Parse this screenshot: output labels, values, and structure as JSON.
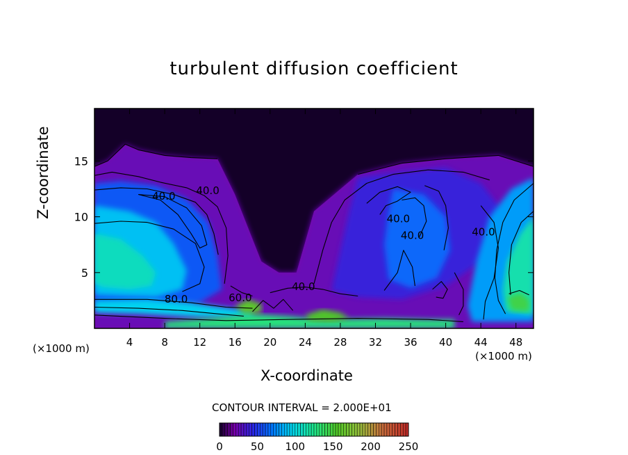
{
  "chart_data": {
    "type": "heatmap",
    "title": "turbulent diffusion coefficient",
    "xlabel": "X-coordinate",
    "ylabel": "Z-coordinate",
    "x_unit_left": "(×1000 m)",
    "x_unit_right": "(×1000 m)",
    "xlim": [
      0,
      50
    ],
    "ylim": [
      0,
      19.7
    ],
    "x_ticks": [
      4,
      8,
      12,
      16,
      20,
      24,
      28,
      32,
      36,
      40,
      44,
      48
    ],
    "y_ticks": [
      5,
      10,
      15
    ],
    "contour_interval_text": "CONTOUR INTERVAL = 2.000E+01",
    "colorbar": {
      "min": 0,
      "max": 250,
      "ticks": [
        0,
        50,
        100,
        150,
        200,
        250
      ]
    },
    "contour_labels": [
      {
        "text": "40.0",
        "x": 7.9,
        "y": 11.8
      },
      {
        "text": "40.0",
        "x": 12.9,
        "y": 12.3
      },
      {
        "text": "80.0",
        "x": 9.3,
        "y": 2.6
      },
      {
        "text": "60.0",
        "x": 16.6,
        "y": 2.7
      },
      {
        "text": "40.0",
        "x": 23.8,
        "y": 3.7
      },
      {
        "text": "40.0",
        "x": 34.6,
        "y": 9.8
      },
      {
        "text": "40.0",
        "x": 36.2,
        "y": 8.3
      },
      {
        "text": "40.0",
        "x": 44.3,
        "y": 8.6
      }
    ],
    "regions": [
      {
        "name": "upper-atmosphere",
        "value": 0,
        "poly": [
          [
            0,
            19.7
          ],
          [
            50,
            19.7
          ],
          [
            50,
            14.5
          ],
          [
            46,
            15.5
          ],
          [
            40,
            15.2
          ],
          [
            35,
            14.8
          ],
          [
            30,
            13.8
          ],
          [
            25,
            10.5
          ],
          [
            23,
            5
          ],
          [
            21,
            5
          ],
          [
            19,
            6
          ],
          [
            16,
            12
          ],
          [
            14,
            15.2
          ],
          [
            11,
            15.3
          ],
          [
            8,
            15.5
          ],
          [
            5,
            16
          ],
          [
            3.5,
            16.5
          ],
          [
            1.5,
            15
          ],
          [
            0,
            14.5
          ]
        ]
      },
      {
        "name": "left-cell",
        "value": 25,
        "poly": [
          [
            0,
            14.5
          ],
          [
            1.5,
            15
          ],
          [
            3.5,
            16.5
          ],
          [
            5,
            16
          ],
          [
            8,
            15.5
          ],
          [
            11,
            15.3
          ],
          [
            14,
            15.2
          ],
          [
            16,
            12
          ],
          [
            19,
            6
          ],
          [
            21,
            5
          ],
          [
            23,
            5
          ],
          [
            25,
            10.5
          ],
          [
            30,
            13.8
          ],
          [
            35,
            14.8
          ],
          [
            40,
            15.2
          ],
          [
            46,
            15.5
          ],
          [
            50,
            14.5
          ],
          [
            50,
            0
          ],
          [
            0,
            0
          ]
        ]
      },
      {
        "name": "left-cell-core",
        "value": 60,
        "poly": [
          [
            0,
            13
          ],
          [
            3,
            13.2
          ],
          [
            7,
            12.8
          ],
          [
            10.5,
            11.6
          ],
          [
            13,
            9.5
          ],
          [
            14,
            6.5
          ],
          [
            14.5,
            3.5
          ],
          [
            12,
            2.3
          ],
          [
            8,
            2
          ],
          [
            4,
            2
          ],
          [
            0,
            2
          ]
        ]
      },
      {
        "name": "left-cell-inner",
        "value": 90,
        "poly": [
          [
            0,
            11
          ],
          [
            4,
            10.5
          ],
          [
            7,
            9.5
          ],
          [
            9,
            7.6
          ],
          [
            10.5,
            5.2
          ],
          [
            10,
            3.5
          ],
          [
            7,
            2.8
          ],
          [
            3,
            2.9
          ],
          [
            0,
            3
          ]
        ]
      },
      {
        "name": "left-cell-bright",
        "value": 110,
        "poly": [
          [
            0,
            8.5
          ],
          [
            3,
            8
          ],
          [
            5.5,
            6.5
          ],
          [
            7,
            5
          ],
          [
            6.5,
            3.8
          ],
          [
            4,
            3.5
          ],
          [
            1,
            3.7
          ],
          [
            0,
            4
          ]
        ]
      },
      {
        "name": "left-lower-band",
        "value": 95,
        "poly": [
          [
            0,
            2.5
          ],
          [
            6,
            2.6
          ],
          [
            11,
            2.3
          ],
          [
            15.5,
            1.8
          ],
          [
            18,
            1.6
          ],
          [
            18,
            0.9
          ],
          [
            12,
            1
          ],
          [
            5,
            1.3
          ],
          [
            0,
            1.4
          ]
        ]
      },
      {
        "name": "surface-layer",
        "value": 130,
        "poly": [
          [
            8,
            0.6
          ],
          [
            13,
            0.9
          ],
          [
            18,
            1.3
          ],
          [
            22,
            1.1
          ],
          [
            26,
            0.8
          ],
          [
            33,
            0.9
          ],
          [
            38,
            0.8
          ],
          [
            41,
            0.8
          ],
          [
            41,
            0
          ],
          [
            8,
            0
          ]
        ]
      },
      {
        "name": "right-center-cell",
        "value": 40,
        "poly": [
          [
            30,
            13.5
          ],
          [
            35,
            14
          ],
          [
            40,
            14.4
          ],
          [
            44,
            13
          ],
          [
            47,
            10
          ],
          [
            44,
            6
          ],
          [
            40,
            3.8
          ],
          [
            35,
            2.6
          ],
          [
            30,
            2.8
          ],
          [
            27,
            3.4
          ],
          [
            28,
            7
          ],
          [
            29,
            10.5
          ]
        ]
      },
      {
        "name": "right-center-inner",
        "value": 65,
        "poly": [
          [
            34,
            12.5
          ],
          [
            37.5,
            12
          ],
          [
            40,
            10
          ],
          [
            40.5,
            7
          ],
          [
            39,
            4.5
          ],
          [
            36,
            3.6
          ],
          [
            33.5,
            4.4
          ],
          [
            33,
            7.5
          ],
          [
            33.5,
            10.5
          ]
        ]
      },
      {
        "name": "right-edge-cell",
        "value": 80,
        "poly": [
          [
            50,
            13.5
          ],
          [
            47.5,
            12.5
          ],
          [
            45,
            10
          ],
          [
            43.5,
            6
          ],
          [
            42.5,
            2
          ],
          [
            43,
            0.6
          ],
          [
            50,
            0.6
          ]
        ]
      },
      {
        "name": "right-edge-bright",
        "value": 115,
        "poly": [
          [
            50,
            10
          ],
          [
            48.5,
            8.5
          ],
          [
            47,
            6
          ],
          [
            46.5,
            3.5
          ],
          [
            46.8,
            1.5
          ],
          [
            50,
            1.2
          ]
        ]
      },
      {
        "name": "surface-hotspot",
        "value": 155,
        "poly": [
          [
            24,
            1.2
          ],
          [
            26,
            1.7
          ],
          [
            28,
            1.4
          ],
          [
            29,
            0.9
          ],
          [
            27,
            0.6
          ],
          [
            24.5,
            0.7
          ]
        ]
      },
      {
        "name": "surface-hotspot-2",
        "value": 160,
        "poly": [
          [
            16,
            2
          ],
          [
            17.5,
            2.6
          ],
          [
            19,
            2.2
          ],
          [
            19,
            1.4
          ],
          [
            17,
            1.3
          ]
        ]
      },
      {
        "name": "right-surface-hotspot",
        "value": 145,
        "poly": [
          [
            47,
            2.8
          ],
          [
            48.5,
            3.2
          ],
          [
            49.5,
            2.6
          ],
          [
            49.5,
            1.5
          ],
          [
            47.5,
            1.6
          ]
        ]
      }
    ],
    "contours": [
      [
        [
          0,
          13.7
        ],
        [
          2,
          14
        ],
        [
          5,
          13.6
        ],
        [
          7.5,
          13.1
        ],
        [
          10.5,
          12.6
        ],
        [
          12.5,
          11.9
        ],
        [
          14,
          10.9
        ],
        [
          15,
          9
        ],
        [
          15.2,
          6.5
        ],
        [
          14.8,
          4
        ]
      ],
      [
        [
          0,
          12.4
        ],
        [
          3,
          12.6
        ],
        [
          6,
          12.5
        ],
        [
          9,
          12
        ],
        [
          11.5,
          11.3
        ],
        [
          12.8,
          10.2
        ],
        [
          13.6,
          8.5
        ],
        [
          14.1,
          6.6
        ]
      ],
      [
        [
          5,
          12
        ],
        [
          7.5,
          11.5
        ],
        [
          9.5,
          10.2
        ],
        [
          11,
          8.5
        ],
        [
          12,
          7.2
        ],
        [
          12.8,
          7.5
        ],
        [
          12.2,
          9.2
        ],
        [
          10.5,
          10.8
        ],
        [
          8,
          11.8
        ],
        [
          5,
          12
        ]
      ],
      [
        [
          0,
          9.4
        ],
        [
          3,
          9.6
        ],
        [
          6,
          9.5
        ],
        [
          9,
          8.9
        ],
        [
          11.5,
          7.6
        ],
        [
          12.5,
          5.5
        ],
        [
          12,
          4
        ],
        [
          10,
          3.3
        ]
      ],
      [
        [
          0,
          2.6
        ],
        [
          6,
          2.6
        ],
        [
          11,
          2.3
        ],
        [
          15,
          1.9
        ],
        [
          18,
          1.8
        ]
      ],
      [
        [
          0,
          1.9
        ],
        [
          5,
          1.8
        ],
        [
          10,
          1.6
        ],
        [
          14,
          1.3
        ],
        [
          17,
          1.1
        ]
      ],
      [
        [
          20,
          3.2
        ],
        [
          22,
          3.6
        ],
        [
          24,
          3.7
        ],
        [
          26,
          3.5
        ],
        [
          28,
          3.1
        ],
        [
          30,
          2.9
        ]
      ],
      [
        [
          25,
          4
        ],
        [
          26,
          7
        ],
        [
          27,
          9.5
        ],
        [
          28.5,
          11.5
        ],
        [
          31,
          13
        ],
        [
          34,
          13.8
        ],
        [
          38,
          14.2
        ],
        [
          42,
          14
        ],
        [
          45,
          13.3
        ]
      ],
      [
        [
          31,
          11.2
        ],
        [
          32.5,
          12.2
        ],
        [
          34.5,
          12.7
        ],
        [
          36,
          12.2
        ],
        [
          34.5,
          11.4
        ],
        [
          33.2,
          11
        ],
        [
          32.5,
          10.2
        ]
      ],
      [
        [
          35,
          11.5
        ],
        [
          36.5,
          11.7
        ],
        [
          37.5,
          11
        ],
        [
          37.8,
          9.6
        ],
        [
          37,
          8.2
        ]
      ],
      [
        [
          37.6,
          12.8
        ],
        [
          39.2,
          12.3
        ],
        [
          40,
          11
        ],
        [
          40.3,
          9
        ],
        [
          39.8,
          7
        ]
      ],
      [
        [
          44,
          11
        ],
        [
          45.5,
          9.5
        ],
        [
          46,
          7.2
        ],
        [
          45.5,
          4.5
        ],
        [
          44.5,
          2.4
        ],
        [
          44.3,
          0.8
        ]
      ],
      [
        [
          50,
          13
        ],
        [
          47.8,
          11.5
        ],
        [
          46.5,
          9.5
        ],
        [
          45.8,
          7
        ],
        [
          45.6,
          4.5
        ],
        [
          46,
          2.5
        ],
        [
          46.8,
          1.3
        ]
      ],
      [
        [
          50,
          10.5
        ],
        [
          48.6,
          9.5
        ],
        [
          47.5,
          7.5
        ],
        [
          47.2,
          5
        ],
        [
          47.4,
          3
        ]
      ],
      [
        [
          47.2,
          3.1
        ],
        [
          48.4,
          3.4
        ],
        [
          49.5,
          3
        ]
      ],
      [
        [
          41,
          5
        ],
        [
          42,
          3.5
        ],
        [
          42,
          2
        ],
        [
          41.5,
          1.2
        ]
      ],
      [
        [
          38.5,
          3.5
        ],
        [
          39.5,
          4.2
        ],
        [
          40.2,
          3.5
        ],
        [
          39.7,
          2.7
        ],
        [
          38.9,
          2.8
        ]
      ],
      [
        [
          33,
          3.4
        ],
        [
          34.5,
          5
        ],
        [
          35.2,
          7
        ],
        [
          36.2,
          5.5
        ],
        [
          36.5,
          3.8
        ]
      ],
      [
        [
          18,
          1.5
        ],
        [
          19.2,
          2.5
        ],
        [
          20.4,
          1.8
        ],
        [
          21.5,
          2.6
        ],
        [
          22.6,
          1.6
        ]
      ],
      [
        [
          0,
          1.2
        ],
        [
          8,
          0.9
        ],
        [
          15,
          0.7
        ],
        [
          22,
          0.8
        ],
        [
          30,
          0.9
        ],
        [
          38,
          0.8
        ],
        [
          42,
          0.6
        ]
      ],
      [
        [
          15.5,
          3.8
        ],
        [
          16.8,
          3.2
        ],
        [
          18,
          2.9
        ]
      ],
      [
        [
          0,
          14.5
        ],
        [
          1.5,
          15
        ],
        [
          3.5,
          16.5
        ],
        [
          5,
          16
        ],
        [
          8,
          15.5
        ],
        [
          11,
          15.3
        ],
        [
          14,
          15.2
        ]
      ],
      [
        [
          30,
          13.8
        ],
        [
          35,
          14.8
        ],
        [
          40,
          15.2
        ],
        [
          46,
          15.5
        ],
        [
          50,
          14.5
        ]
      ]
    ]
  }
}
